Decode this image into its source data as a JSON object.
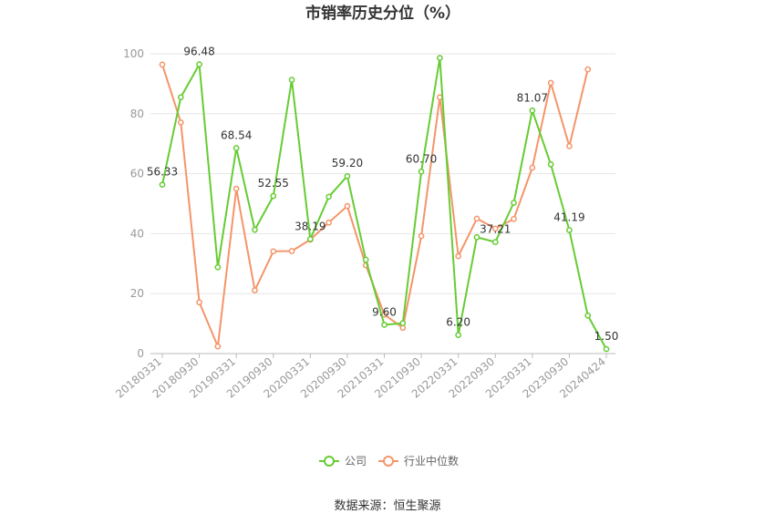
{
  "chart_data": {
    "type": "line",
    "title": "市销率历史分位（%）",
    "source": "数据来源：恒生聚源",
    "ylim": [
      0,
      100
    ],
    "yticks": [
      0,
      20,
      40,
      60,
      80,
      100
    ],
    "grid": true,
    "legend_position": "bottom",
    "x": [
      "20180331",
      "20180630",
      "20180930",
      "20181231",
      "20190331",
      "20190630",
      "20190930",
      "20191231",
      "20200331",
      "20200630",
      "20200930",
      "20201231",
      "20210331",
      "20210630",
      "20210930",
      "20211231",
      "20220331",
      "20220630",
      "20220930",
      "20221231",
      "20230331",
      "20230630",
      "20230930",
      "20231231",
      "20240424"
    ],
    "x_tick_labels": [
      "20180331",
      "20180930",
      "20190331",
      "20190930",
      "20200331",
      "20200930",
      "20210331",
      "20210930",
      "20220331",
      "20220930",
      "20230331",
      "20230930",
      "20240424"
    ],
    "x_tick_indices": [
      0,
      2,
      4,
      6,
      8,
      10,
      12,
      14,
      16,
      18,
      20,
      22,
      24
    ],
    "series": [
      {
        "name": "公司",
        "color": "#66cc33",
        "values": [
          56.33,
          85.5,
          96.48,
          28.8,
          68.54,
          41.3,
          52.55,
          91.3,
          38.19,
          52.3,
          59.2,
          31.3,
          9.6,
          10.1,
          60.7,
          98.6,
          6.2,
          38.8,
          37.21,
          50.3,
          81.07,
          63.1,
          41.19,
          12.7,
          1.5
        ],
        "labels": {
          "0": "56.33",
          "2": "96.48",
          "4": "68.54",
          "6": "52.55",
          "8": "38.19",
          "10": "59.20",
          "12": "9.60",
          "14": "60.70",
          "16": "6.20",
          "18": "37.21",
          "20": "81.07",
          "22": "41.19",
          "24": "1.50"
        }
      },
      {
        "name": "行业中位数",
        "color": "#f4956a",
        "values": [
          96.4,
          77.1,
          17.1,
          2.4,
          55.0,
          21.1,
          34.1,
          34.2,
          38.0,
          43.7,
          49.2,
          29.5,
          13.0,
          8.6,
          39.2,
          85.5,
          32.5,
          45.0,
          41.7,
          44.9,
          62.0,
          90.3,
          69.2,
          94.8,
          null
        ],
        "labels": {}
      }
    ]
  }
}
